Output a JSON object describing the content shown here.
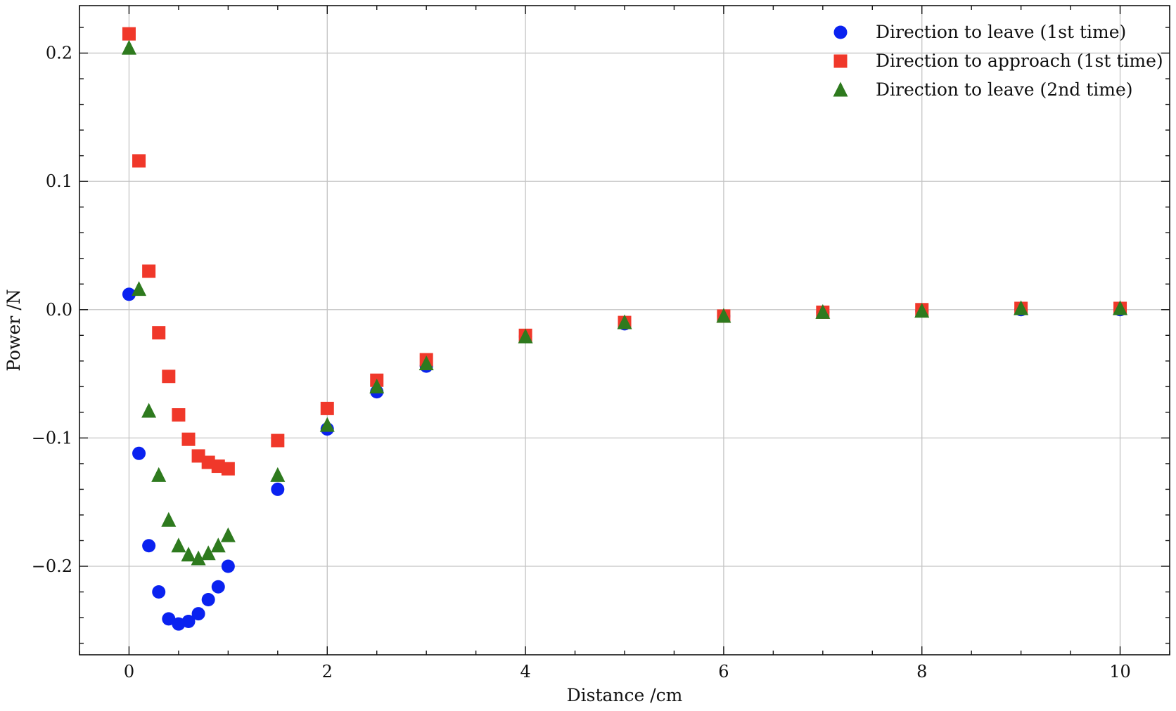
{
  "chart_data": {
    "type": "scatter",
    "xlabel": "Distance  /cm",
    "ylabel": "Power  /N",
    "xlim": [
      -0.5,
      10.5
    ],
    "ylim": [
      -0.269,
      0.237
    ],
    "x_ticks": [
      0,
      2,
      4,
      6,
      8,
      10
    ],
    "x_tick_labels": [
      "0",
      "2",
      "4",
      "6",
      "8",
      "10"
    ],
    "y_ticks": [
      -0.2,
      -0.1,
      0.0,
      0.1,
      0.2
    ],
    "y_tick_labels": [
      "−0.2",
      "−0.1",
      "0.0",
      "0.1",
      "0.2"
    ],
    "grid": true,
    "legend_position": "top-right",
    "series": [
      {
        "name": "Direction to leave (1st time)",
        "marker": "circle",
        "color": "#0a22f0",
        "x": [
          0,
          0.1,
          0.2,
          0.3,
          0.4,
          0.5,
          0.6,
          0.7,
          0.8,
          0.9,
          1.0,
          1.5,
          2,
          2.5,
          3,
          4,
          5,
          6,
          7,
          8,
          9,
          10
        ],
        "y": [
          0.012,
          -0.112,
          -0.184,
          -0.22,
          -0.241,
          -0.245,
          -0.243,
          -0.237,
          -0.226,
          -0.216,
          -0.2,
          -0.14,
          -0.093,
          -0.064,
          -0.044,
          -0.021,
          -0.011,
          -0.005,
          -0.002,
          -0.001,
          0.0,
          0.0
        ]
      },
      {
        "name": "Direction to approach (1st time)",
        "marker": "square",
        "color": "#f0382a",
        "x": [
          0,
          0.1,
          0.2,
          0.3,
          0.4,
          0.5,
          0.6,
          0.7,
          0.8,
          0.9,
          1.0,
          1.5,
          2,
          2.5,
          3,
          4,
          5,
          6,
          7,
          8,
          9,
          10
        ],
        "y": [
          0.215,
          0.116,
          0.03,
          -0.018,
          -0.052,
          -0.082,
          -0.101,
          -0.114,
          -0.119,
          -0.122,
          -0.124,
          -0.102,
          -0.077,
          -0.055,
          -0.039,
          -0.02,
          -0.01,
          -0.005,
          -0.002,
          0.0,
          0.001,
          0.001
        ]
      },
      {
        "name": "Direction to leave (2nd time)",
        "marker": "triangle",
        "color": "#2e7a1e",
        "x": [
          0,
          0.1,
          0.2,
          0.3,
          0.4,
          0.5,
          0.6,
          0.7,
          0.8,
          0.9,
          1.0,
          1.5,
          2,
          2.5,
          3,
          4,
          5,
          6,
          7,
          8,
          9,
          10
        ],
        "y": [
          0.204,
          0.016,
          -0.079,
          -0.129,
          -0.164,
          -0.184,
          -0.191,
          -0.194,
          -0.19,
          -0.184,
          -0.176,
          -0.129,
          -0.09,
          -0.06,
          -0.042,
          -0.021,
          -0.01,
          -0.005,
          -0.002,
          -0.001,
          0.001,
          0.001
        ]
      }
    ]
  }
}
